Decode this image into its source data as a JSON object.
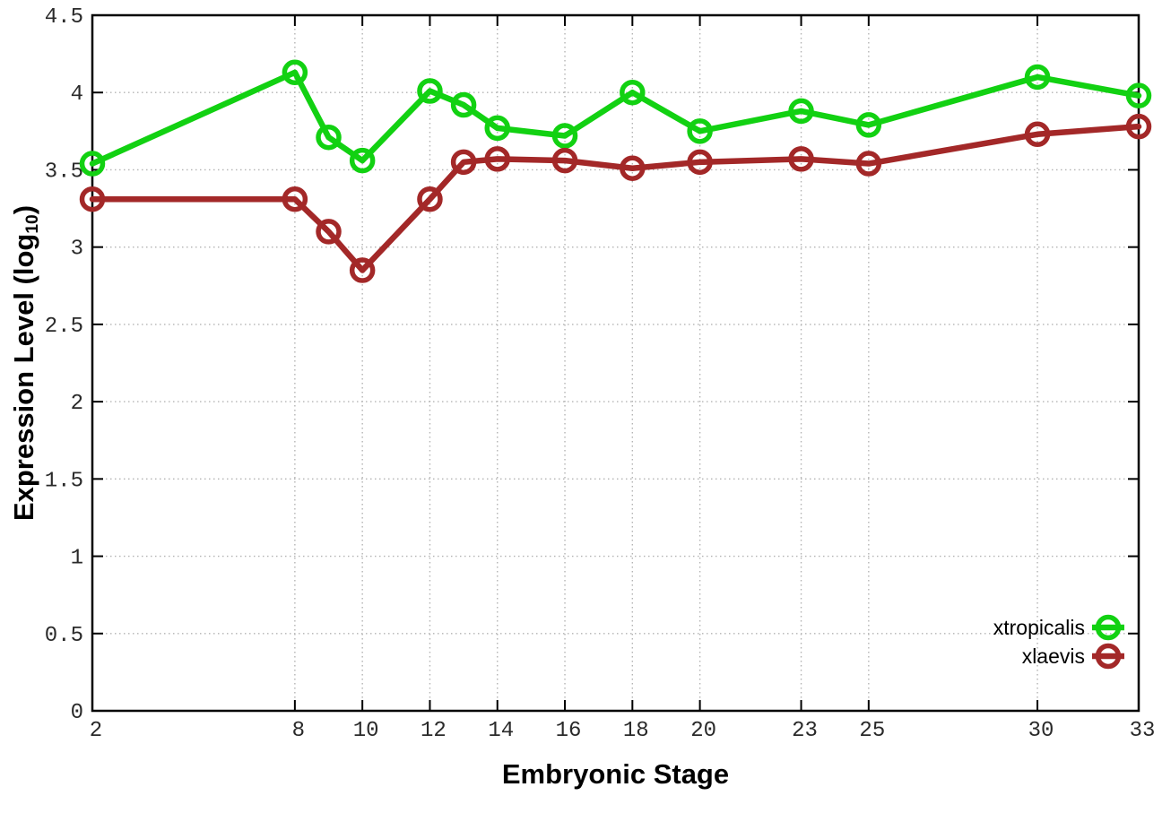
{
  "chart_data": {
    "type": "line",
    "title": "",
    "xlabel": "Embryonic Stage",
    "ylabel_prefix": "Expression Level (log",
    "ylabel_sub": "10",
    "ylabel_suffix": ")",
    "x": [
      2,
      8,
      9,
      10,
      12,
      13,
      14,
      16,
      18,
      20,
      23,
      25,
      30,
      33
    ],
    "series": [
      {
        "name": "xtropicalis",
        "color": "#12d112",
        "values": [
          3.54,
          4.13,
          3.71,
          3.56,
          4.01,
          3.92,
          3.77,
          3.72,
          4.0,
          3.75,
          3.88,
          3.79,
          4.1,
          3.98
        ]
      },
      {
        "name": "xlaevis",
        "color": "#a32828",
        "values": [
          3.31,
          3.31,
          3.1,
          2.85,
          3.31,
          3.55,
          3.57,
          3.56,
          3.51,
          3.55,
          3.57,
          3.54,
          3.73,
          3.78
        ]
      }
    ],
    "xlim": [
      2,
      33
    ],
    "ylim": [
      0,
      4.5
    ],
    "x_ticks": [
      2,
      8,
      10,
      12,
      14,
      16,
      18,
      20,
      23,
      25,
      30,
      33
    ],
    "y_ticks": [
      0,
      0.5,
      1,
      1.5,
      2,
      2.5,
      3,
      3.5,
      4,
      4.5
    ],
    "grid": true,
    "legend_position": "bottom-right"
  },
  "colors": {
    "grid": "#b3b3b3",
    "border": "#000000",
    "tick_label": "#2a2a2a",
    "background": "#ffffff"
  }
}
